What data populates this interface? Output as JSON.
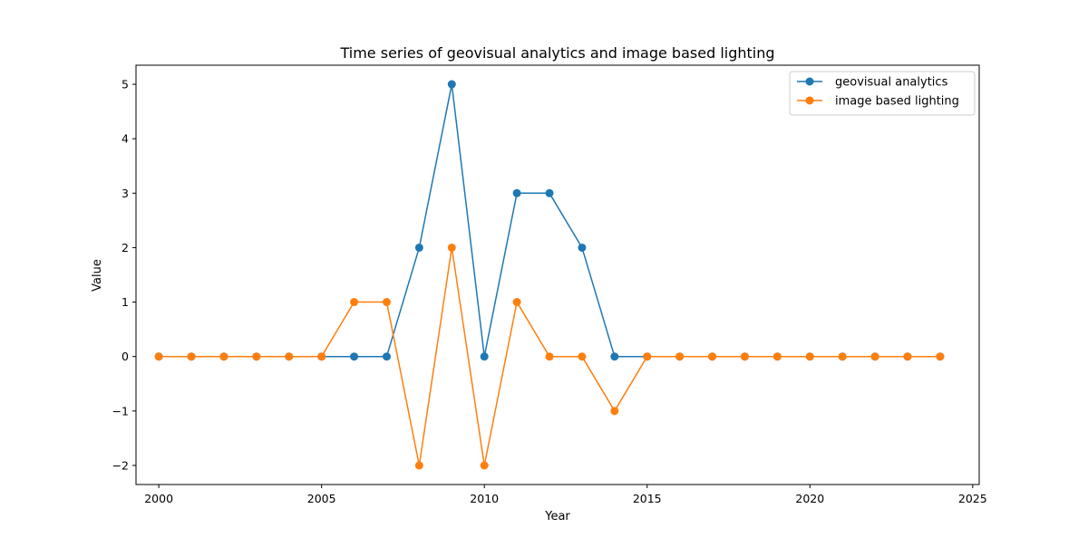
{
  "chart_data": {
    "type": "line",
    "title": "Time series of geovisual analytics and image based lighting",
    "xlabel": "Year",
    "ylabel": "Value",
    "x": [
      2000,
      2001,
      2002,
      2003,
      2004,
      2005,
      2006,
      2007,
      2008,
      2009,
      2010,
      2011,
      2012,
      2013,
      2014,
      2015,
      2016,
      2017,
      2018,
      2019,
      2020,
      2021,
      2022,
      2023,
      2024
    ],
    "series": [
      {
        "name": "geovisual analytics",
        "color": "#1f77b4",
        "values": [
          0,
          0,
          0,
          0,
          0,
          0,
          0,
          0,
          2,
          5,
          0,
          3,
          3,
          2,
          0,
          0,
          0,
          0,
          0,
          0,
          0,
          0,
          0,
          0,
          0
        ]
      },
      {
        "name": "image based lighting",
        "color": "#ff7f0e",
        "values": [
          0,
          0,
          0,
          0,
          0,
          0,
          1,
          1,
          -2,
          2,
          -2,
          1,
          0,
          0,
          -1,
          0,
          0,
          0,
          0,
          0,
          0,
          0,
          0,
          0,
          0
        ]
      }
    ],
    "xticks": [
      2000,
      2005,
      2010,
      2015,
      2020,
      2025
    ],
    "xtick_labels": [
      "2000",
      "2005",
      "2010",
      "2015",
      "2020",
      "2025"
    ],
    "yticks": [
      -2,
      -1,
      0,
      1,
      2,
      3,
      4,
      5
    ],
    "ytick_labels": [
      "−2",
      "−1",
      "0",
      "1",
      "2",
      "3",
      "4",
      "5"
    ],
    "xlim": [
      1999.3,
      2025.2
    ],
    "ylim": [
      -2.35,
      5.35
    ],
    "grid": false,
    "legend_position": "upper right"
  }
}
